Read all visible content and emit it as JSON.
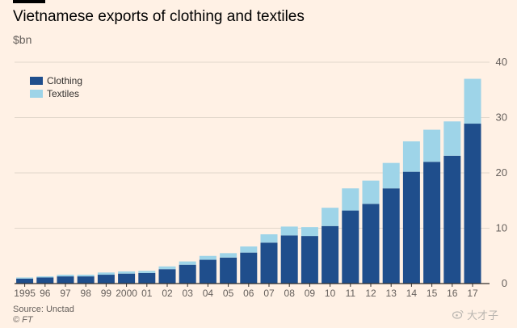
{
  "header": {
    "title": "Vietnamese exports of clothing and textiles",
    "unit": "$bn"
  },
  "footer": {
    "source": "Source: Unctad",
    "credit": "© FT"
  },
  "watermark": {
    "icon": "weibo-icon",
    "text": "大才子"
  },
  "colors": {
    "background": "#fff1e5",
    "clothing": "#1f4e8c",
    "textiles": "#9ed4e8",
    "grid": "#e2d7cb",
    "axis": "#33302e",
    "tick_text": "#66605c"
  },
  "chart_data": {
    "type": "bar",
    "stacked": true,
    "title": "Vietnamese exports of clothing and textiles",
    "ylabel": "$bn",
    "ylim": [
      0,
      40
    ],
    "yticks": [
      0,
      10,
      20,
      30,
      40
    ],
    "y_axis_side": "right",
    "grid": true,
    "legend_position": "top-left",
    "categories": [
      "1995",
      "96",
      "97",
      "98",
      "99",
      "2000",
      "01",
      "02",
      "03",
      "04",
      "05",
      "06",
      "07",
      "08",
      "09",
      "10",
      "11",
      "12",
      "13",
      "14",
      "15",
      "16",
      "17"
    ],
    "series": [
      {
        "name": "Clothing",
        "color": "#1f4e8c",
        "values": [
          0.9,
          1.1,
          1.3,
          1.3,
          1.6,
          1.8,
          1.9,
          2.6,
          3.4,
          4.3,
          4.7,
          5.6,
          7.4,
          8.7,
          8.6,
          10.4,
          13.2,
          14.4,
          17.2,
          20.2,
          22.0,
          23.1,
          28.9
        ]
      },
      {
        "name": "Textiles",
        "color": "#9ed4e8",
        "values": [
          0.2,
          0.2,
          0.3,
          0.3,
          0.4,
          0.4,
          0.4,
          0.5,
          0.6,
          0.7,
          0.8,
          1.1,
          1.5,
          1.6,
          1.6,
          3.3,
          4.0,
          4.2,
          4.6,
          5.5,
          5.8,
          6.2,
          8.1
        ]
      }
    ]
  }
}
